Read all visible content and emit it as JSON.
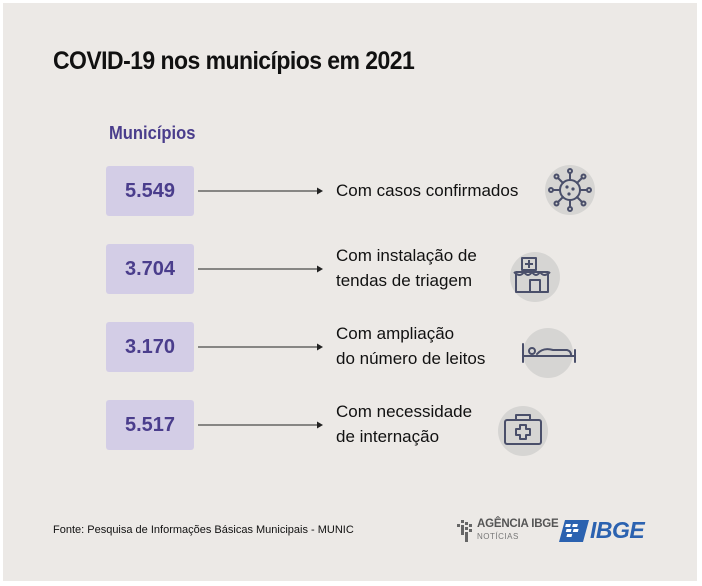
{
  "title": "COVID-19 nos municípios em 2021",
  "column_label": "Municípios",
  "rows": [
    {
      "value": "5.549",
      "description": "Com casos confirmados",
      "icon": "virus-icon"
    },
    {
      "value": "3.704",
      "description": "Com instalação de\ntendas de triagem",
      "icon": "clinic-tent-icon"
    },
    {
      "value": "3.170",
      "description": "Com ampliação\ndo número de leitos",
      "icon": "hospital-bed-icon"
    },
    {
      "value": "5.517",
      "description": "Com necessidade\nde internação",
      "icon": "medical-kit-icon"
    }
  ],
  "source": "Fonte: Pesquisa de Informações Básicas Municipais - MUNIC",
  "logos": {
    "agencia": "AGÊNCIA IBGE",
    "agencia_sub": "NOTÍCIAS",
    "ibge": "IBGE"
  },
  "colors": {
    "background": "#ece9e6",
    "value_box": "#d3cde6",
    "accent": "#4a3d8c",
    "icon_circle": "#d6d5d3",
    "ibge_blue": "#2b62b0"
  }
}
